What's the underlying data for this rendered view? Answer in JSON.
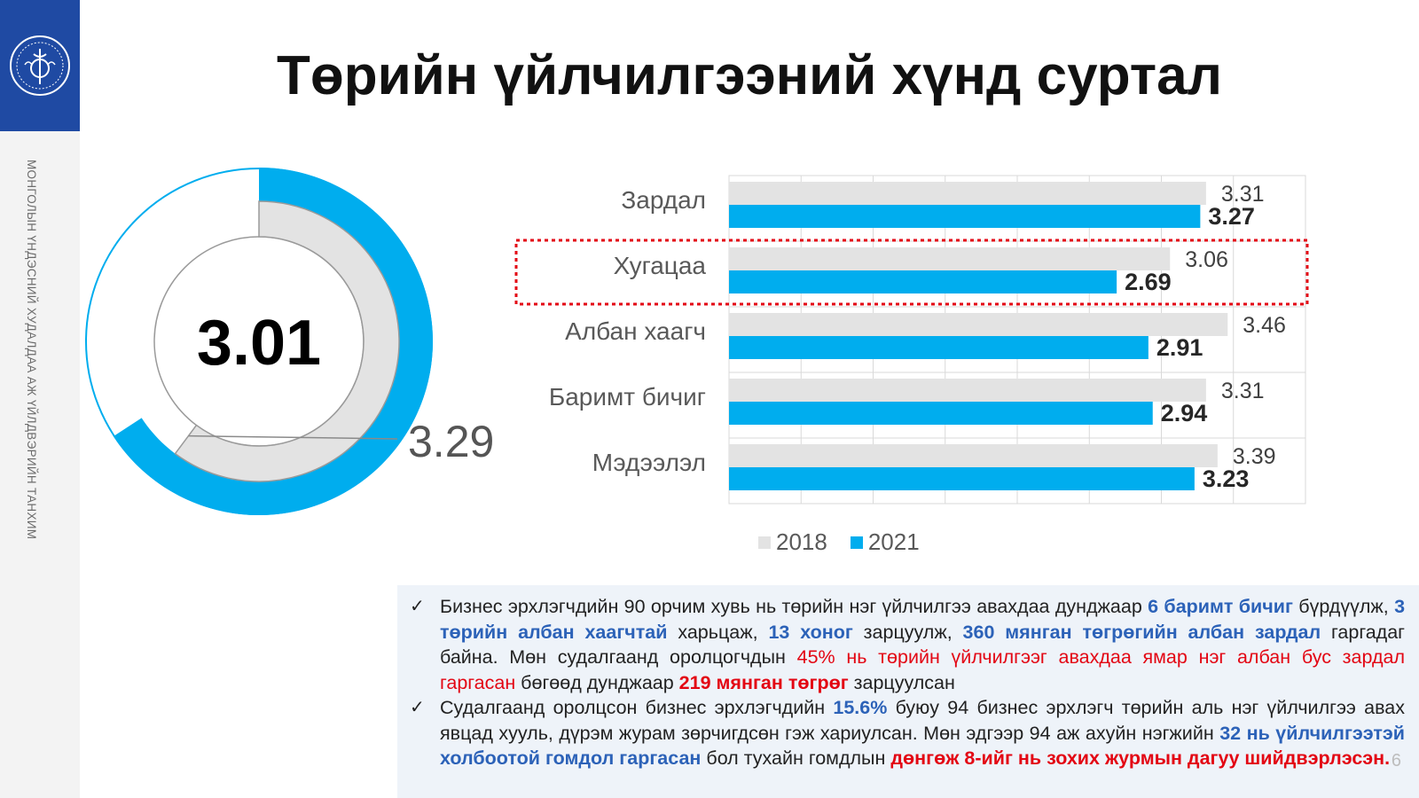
{
  "sidebar": {
    "org_name": "МОНГОЛЫН ҮНДЭСНИЙ ХУДАЛДАА АЖ ҮЙЛДВЭРИЙН ТАНХИМ"
  },
  "title": "Төрийн үйлчилгээний хүнд суртал",
  "chart_data": [
    {
      "type": "donut",
      "center_label": "3.01",
      "outer_label": "3.29",
      "scale_max": 5,
      "series": [
        {
          "value": 3.29,
          "color": "#00adee"
        },
        {
          "value": 3.01,
          "color": "#e3e3e3"
        }
      ]
    },
    {
      "type": "bar",
      "orientation": "horizontal",
      "categories": [
        "Зардал",
        "Хугацаа",
        "Албан хаагч",
        "Баримт бичиг",
        "Мэдээлэл"
      ],
      "series": [
        {
          "name": "2018",
          "values": [
            3.31,
            3.06,
            3.46,
            3.31,
            3.39
          ],
          "color": "#e3e3e3"
        },
        {
          "name": "2021",
          "values": [
            3.27,
            2.69,
            2.91,
            2.94,
            3.23
          ],
          "color": "#00adee"
        }
      ],
      "xlim": [
        0,
        4
      ],
      "grid": true,
      "legend": "bottom",
      "highlighted_category": "Хугацаа"
    }
  ],
  "notes": [
    {
      "segments": [
        {
          "text": "Бизнес эрхлэгчдийн 90 орчим хувь нь төрийн нэг үйлчилгээ авахдаа дунджаар ",
          "style": "normal"
        },
        {
          "text": "6 баримт бичиг",
          "style": "blue"
        },
        {
          "text": " бүрдүүлж, ",
          "style": "normal"
        },
        {
          "text": "3 төрийн албан хаагчтай",
          "style": "blue"
        },
        {
          "text": " харьцаж, ",
          "style": "normal"
        },
        {
          "text": "13 хоног",
          "style": "blue"
        },
        {
          "text": " зарцуулж, ",
          "style": "normal"
        },
        {
          "text": "360 мянган төгрөгийн албан зардал",
          "style": "blue"
        },
        {
          "text": " гаргадаг байна. Мөн судалгаанд оролцогчдын ",
          "style": "normal"
        },
        {
          "text": "45% нь төрийн үйлчилгээг авахдаа ямар нэг албан бус зардал гаргасан",
          "style": "red"
        },
        {
          "text": " бөгөөд дунджаар ",
          "style": "normal"
        },
        {
          "text": "219 мянган төгрөг",
          "style": "redb"
        },
        {
          "text": " зарцуулсан",
          "style": "normal"
        }
      ]
    },
    {
      "segments": [
        {
          "text": "Судалгаанд оролцсон бизнес эрхлэгчдийн ",
          "style": "normal"
        },
        {
          "text": "15.6%",
          "style": "blue"
        },
        {
          "text": " буюу 94 бизнес эрхлэгч төрийн аль нэг үйлчилгээ авах явцад хууль, дүрэм журам зөрчигдсөн гэж хариулсан. Мөн эдгээр 94 аж ахуйн нэгжийн ",
          "style": "normal"
        },
        {
          "text": "32 нь үйлчилгээтэй холбоотой гомдол гаргасан",
          "style": "blue"
        },
        {
          "text": " бол тухайн гомдлын ",
          "style": "normal"
        },
        {
          "text": "дөнгөж 8-ийг нь зохих журмын дагуу шийдвэрлэсэн.",
          "style": "redb"
        }
      ]
    }
  ],
  "page_number": "6",
  "colors": {
    "accent_blue": "#00adee",
    "gray": "#e3e3e3",
    "logo_bg": "#1f4aa3"
  },
  "icons": {
    "logo": "chamber-emblem-icon",
    "bullet": "check-icon"
  }
}
